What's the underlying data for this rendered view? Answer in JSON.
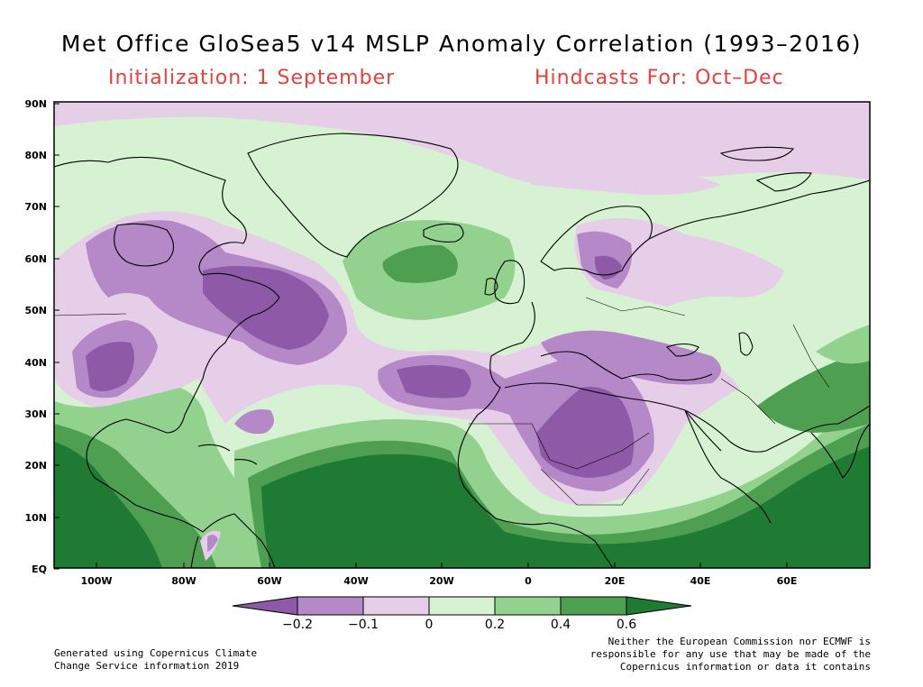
{
  "title": "Met Office GloSea5 v14 MSLP Anomaly Correlation (1993–2016)",
  "init_label": "Initialization: 1 September",
  "hindcast_label": "Hindcasts For: Oct–Dec",
  "lat_labels": [
    "90N",
    "80N",
    "70N",
    "60N",
    "50N",
    "40N",
    "30N",
    "20N",
    "10N",
    "EQ"
  ],
  "lon_labels": [
    "100W",
    "80W",
    "60W",
    "40W",
    "20W",
    "0",
    "20E",
    "40E",
    "60E"
  ],
  "colorbar": {
    "tick_labels": [
      "−0.2",
      "−0.1",
      "0",
      "0.2",
      "0.4",
      "0.6"
    ],
    "colors": [
      "#8e5aa8",
      "#b588c8",
      "#e6cde8",
      "#d7f2d3",
      "#92d28e",
      "#4f9f53",
      "#1f7a34"
    ]
  },
  "footer_left": [
    "Generated using Copernicus Climate",
    "Change Service information 2019"
  ],
  "footer_right": [
    "Neither the European Commission nor ECMWF is",
    "responsible for any use that may be made of the",
    "Copernicus information or data it contains"
  ]
}
